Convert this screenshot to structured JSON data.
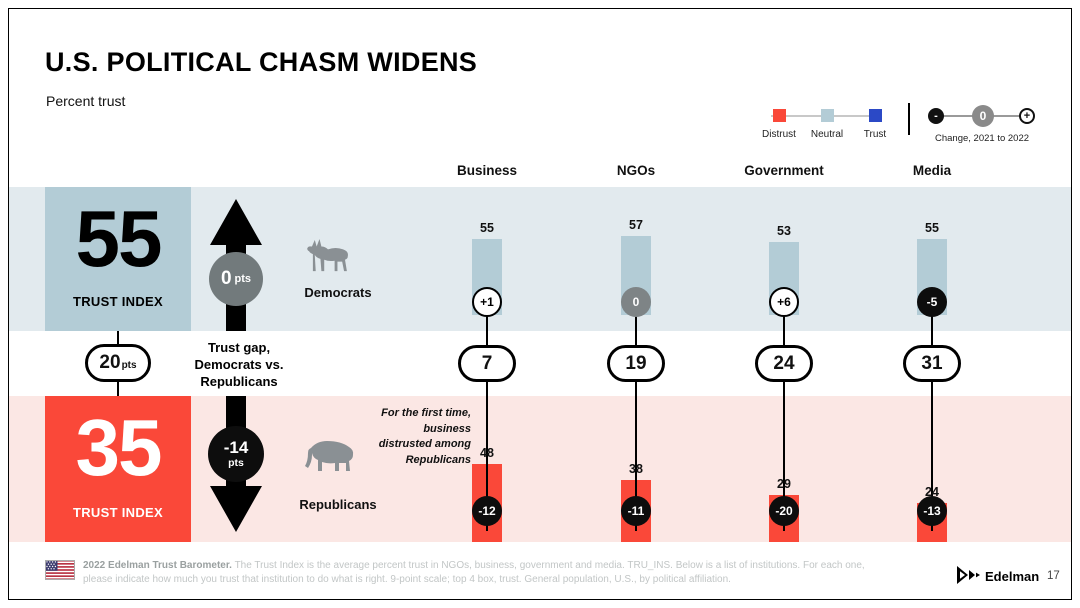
{
  "slide": {
    "title": "U.S. POLITICAL CHASM WIDENS",
    "subtitle": "Percent trust",
    "page_number": "17"
  },
  "colors": {
    "distrust": "#FA4839",
    "neutral": "#B3CCD6",
    "trust": "#2B49C6",
    "democrat_band": "#E2EAEE",
    "republican_band": "#FBE7E4",
    "positive_badge": "#FFFFFF",
    "zero_badge": "#7E8486",
    "negative_badge": "#0D0D0D"
  },
  "legend": {
    "items": [
      {
        "label": "Distrust",
        "color": "#FA4839"
      },
      {
        "label": "Neutral",
        "color": "#B3CCD6"
      },
      {
        "label": "Trust",
        "color": "#2B49C6"
      }
    ],
    "change": {
      "label": "Change, 2021 to 2022",
      "minus_symbol": "-",
      "zero_symbol": "0",
      "plus_symbol": "+"
    }
  },
  "left_panel": {
    "democrat_index": {
      "value": "55",
      "label": "TRUST INDEX",
      "change": "0",
      "change_unit": "pts"
    },
    "republican_index": {
      "value": "35",
      "label": "TRUST INDEX",
      "change": "-14",
      "change_unit": "pts"
    },
    "gap": {
      "value": "20",
      "unit": "pts",
      "label_lines": [
        "Trust gap,",
        "Democrats vs.",
        "Republicans"
      ]
    }
  },
  "rows": {
    "democrats": "Democrats",
    "republicans": "Republicans"
  },
  "annotation": {
    "lines": [
      "For the first time,",
      "business",
      "distrusted among",
      "Republicans"
    ]
  },
  "chart_data": {
    "type": "bar",
    "title": "U.S. POLITICAL CHASM WIDENS",
    "subtitle": "Percent trust",
    "categories": [
      "Business",
      "NGOs",
      "Government",
      "Media"
    ],
    "series": [
      {
        "name": "Democrats",
        "values": [
          55,
          57,
          53,
          55
        ],
        "changes": [
          "+1",
          "0",
          "+6",
          "-5"
        ],
        "change_styles": [
          "white",
          "gray",
          "white",
          "black"
        ],
        "bar_color": "#B3CCD6"
      },
      {
        "name": "Republicans",
        "values": [
          48,
          38,
          29,
          24
        ],
        "changes": [
          "-12",
          "-11",
          "-20",
          "-13"
        ],
        "change_styles": [
          "black",
          "black",
          "black",
          "black"
        ],
        "bar_color": "#FA4839"
      }
    ],
    "gaps": [
      7,
      19,
      24,
      31
    ],
    "trust_index": {
      "democrats": 55,
      "republicans": 35,
      "democrat_change": 0,
      "republican_change": -14,
      "gap": 20
    }
  },
  "footer": {
    "bold": "2022 Edelman Trust Barometer.",
    "text": " The Trust Index is the average percent trust in NGOs, business, government and media. TRU_INS. Below is a list of institutions. For each one, please indicate how much you trust that institution to do what is right. 9-point scale; top 4 box, trust. General population, U.S., by political affiliation."
  },
  "logo": {
    "name": "Edelman"
  }
}
